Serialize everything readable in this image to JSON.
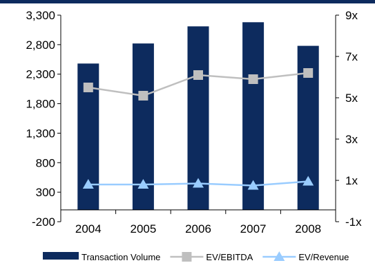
{
  "chart_data": {
    "type": "bar",
    "categories": [
      "2004",
      "2005",
      "2006",
      "2007",
      "2008"
    ],
    "series": [
      {
        "name": "Transaction Volume",
        "type": "bar",
        "axis": "left",
        "color": "#0d2b5e",
        "values": [
          2480,
          2820,
          3110,
          3180,
          2780
        ]
      },
      {
        "name": "EV/EBITDA",
        "type": "line",
        "axis": "right",
        "color": "#bfbfbf",
        "marker": "square",
        "values": [
          5.5,
          5.1,
          6.1,
          5.9,
          6.2
        ]
      },
      {
        "name": "EV/Revenue",
        "type": "line",
        "axis": "right",
        "color": "#99ccff",
        "marker": "triangle",
        "values": [
          0.8,
          0.8,
          0.85,
          0.75,
          0.95
        ]
      }
    ],
    "y_left": {
      "min": -200,
      "max": 3300,
      "ticks": [
        -200,
        300,
        800,
        1300,
        1800,
        2300,
        2800,
        3300
      ],
      "tick_labels": [
        "-200",
        "300",
        "800",
        "1,300",
        "1,800",
        "2,300",
        "2,800",
        "3,300"
      ]
    },
    "y_right": {
      "min": -1,
      "max": 9,
      "ticks": [
        -1,
        1,
        3,
        5,
        7,
        9
      ],
      "tick_labels": [
        "-1x",
        "1x",
        "3x",
        "5x",
        "7x",
        "9x"
      ]
    },
    "grid": false,
    "legend": "bottom"
  }
}
